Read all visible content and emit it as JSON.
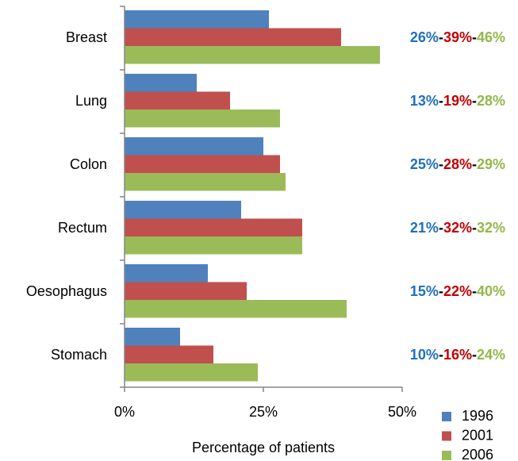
{
  "chart_data": {
    "type": "hbar",
    "categories": [
      "Breast",
      "Lung",
      "Colon",
      "Rectum",
      "Oesophagus",
      "Stomach"
    ],
    "series": [
      {
        "name": "1996",
        "color": "#4f81bd",
        "label_color": "#1f6fbf",
        "values": [
          26,
          13,
          25,
          21,
          15,
          10
        ],
        "value_labels": [
          "26%",
          "13%",
          "25%",
          "21%",
          "15%",
          "10%"
        ]
      },
      {
        "name": "2001",
        "color": "#c0504d",
        "label_color": "#c00000",
        "values": [
          39,
          19,
          28,
          32,
          22,
          16
        ],
        "value_labels": [
          "39%",
          "19%",
          "28%",
          "32%",
          "22%",
          "16%"
        ]
      },
      {
        "name": "2006",
        "color": "#9bbb59",
        "label_color": "#92b84a",
        "values": [
          46,
          28,
          29,
          32,
          40,
          24
        ],
        "value_labels": [
          "46%",
          "28%",
          "29%",
          "32%",
          "40%",
          "24%"
        ]
      }
    ],
    "label_separator": "-",
    "xlabel": "Percentage of patients",
    "xlim": [
      0,
      50
    ],
    "xticks": [
      {
        "value": 0,
        "label": "0%"
      },
      {
        "value": 25,
        "label": "25%"
      },
      {
        "value": 50,
        "label": "50%"
      }
    ],
    "legend": "bottom-right"
  }
}
